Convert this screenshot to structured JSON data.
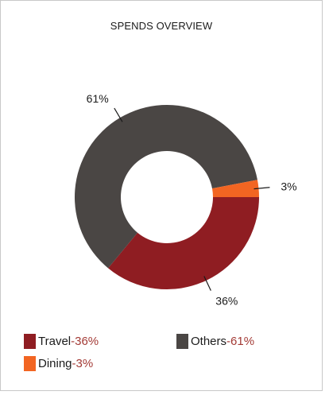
{
  "chart_data": {
    "type": "pie",
    "variant": "donut",
    "title": "SPENDS OVERVIEW",
    "slices": [
      {
        "name": "Travel",
        "value": 36,
        "label": "36%",
        "legend_value": "-36%",
        "color": "#8f1d22"
      },
      {
        "name": "Others",
        "value": 61,
        "label": "61%",
        "legend_value": "-61%",
        "color": "#4a4644"
      },
      {
        "name": "Dining",
        "value": 3,
        "label": "3%",
        "legend_value": "-3%",
        "color": "#f26522"
      }
    ],
    "legend_placement": "bottom"
  }
}
